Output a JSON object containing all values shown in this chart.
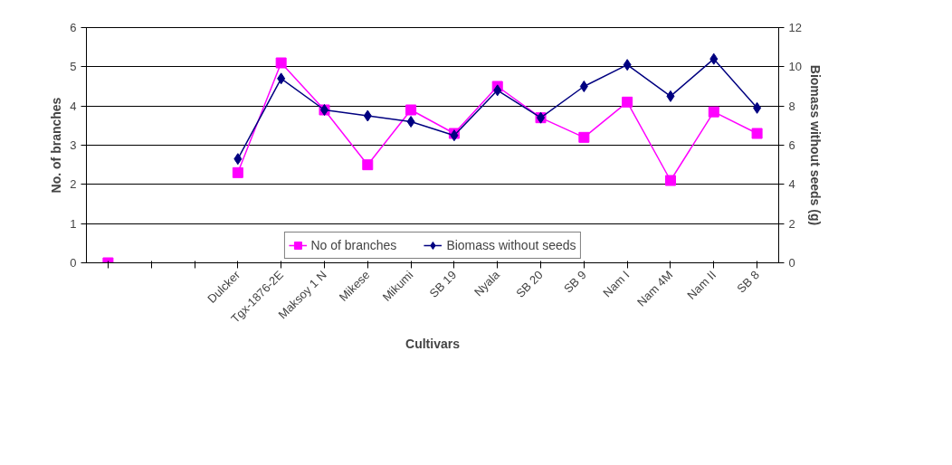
{
  "chart_data": {
    "type": "line",
    "xlabel": "Cultivars",
    "ylabel": "No. of branches",
    "y2label": "Biomass without seeds (g)",
    "categories": [
      null,
      null,
      null,
      "Dulcker",
      "Tgx-1876-2E",
      "Maksoy 1 N",
      "Mikese",
      "Mikumi",
      "SB 19",
      "Nyala",
      "SB 20",
      "SB 9",
      "Nam I",
      "Nam 4M",
      "Nam II",
      "SB 8"
    ],
    "series": [
      {
        "name": "No of branches",
        "color": "#ff00ff",
        "marker": "square",
        "values": [
          0,
          null,
          null,
          2.3,
          5.1,
          3.9,
          2.5,
          3.9,
          3.3,
          4.5,
          3.7,
          3.2,
          4.1,
          2.1,
          3.85,
          3.3
        ]
      },
      {
        "name": "Biomass without seeds",
        "color": "#000080",
        "marker": "diamond",
        "axis": "y2",
        "values": [
          null,
          null,
          null,
          5.3,
          9.4,
          7.8,
          7.5,
          7.2,
          6.5,
          8.8,
          7.4,
          9.0,
          10.1,
          8.5,
          10.4,
          7.9
        ]
      }
    ],
    "ylim": [
      0,
      6
    ],
    "yticks": [
      0,
      1,
      2,
      3,
      4,
      5,
      6
    ],
    "y2lim": [
      0,
      12
    ],
    "y2ticks": [
      0,
      2,
      4,
      6,
      8,
      10,
      12
    ],
    "grid": "y",
    "legend": "bottom",
    "line_style": "solid"
  }
}
